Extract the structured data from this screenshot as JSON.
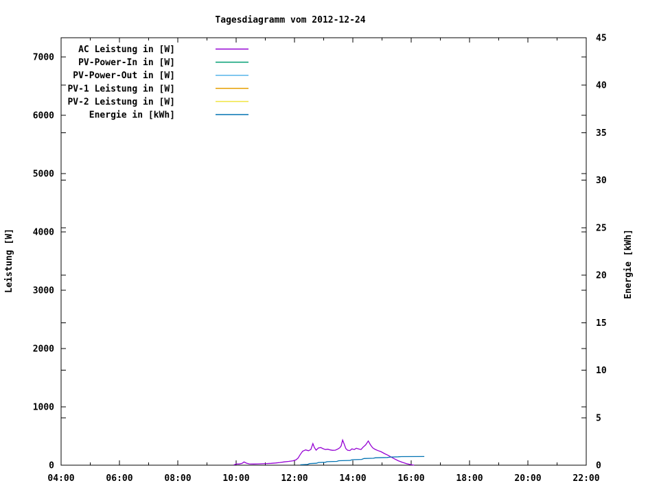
{
  "chart_data": {
    "type": "line",
    "title": "Tagesdiagramm vom 2012-12-24",
    "grid": false,
    "legend_position": "top-left-inside",
    "x_axis": {
      "range_hours": [
        4,
        22
      ],
      "major_ticks": [
        {
          "hour": 4,
          "label": "04:00"
        },
        {
          "hour": 6,
          "label": "06:00"
        },
        {
          "hour": 8,
          "label": "08:00"
        },
        {
          "hour": 10,
          "label": "10:00"
        },
        {
          "hour": 12,
          "label": "12:00"
        },
        {
          "hour": 14,
          "label": "14:00"
        },
        {
          "hour": 16,
          "label": "16:00"
        },
        {
          "hour": 18,
          "label": "18:00"
        },
        {
          "hour": 20,
          "label": "20:00"
        },
        {
          "hour": 22,
          "label": "22:00"
        }
      ],
      "minor_tick_hours": [
        5,
        7,
        9,
        11,
        13,
        15,
        17,
        19,
        21
      ]
    },
    "y_left": {
      "label": "Leistung [W]",
      "min": 0,
      "max": 7327,
      "tick_values": [
        0,
        1000,
        2000,
        3000,
        4000,
        5000,
        6000,
        7000
      ]
    },
    "y_right": {
      "label": "Energie [kWh]",
      "min": 0,
      "max": 45,
      "tick_values": [
        0,
        5,
        10,
        15,
        20,
        25,
        30,
        35,
        40,
        45
      ]
    },
    "series": [
      {
        "name": "AC Leistung in [W]",
        "color": "#9400d3",
        "axis": "left",
        "points": [
          [
            9.92,
            5
          ],
          [
            10.0,
            20
          ],
          [
            10.1,
            20
          ],
          [
            10.2,
            30
          ],
          [
            10.27,
            55
          ],
          [
            10.35,
            35
          ],
          [
            10.45,
            22
          ],
          [
            10.6,
            20
          ],
          [
            10.75,
            22
          ],
          [
            10.9,
            25
          ],
          [
            11.05,
            28
          ],
          [
            11.2,
            32
          ],
          [
            11.35,
            38
          ],
          [
            11.5,
            46
          ],
          [
            11.65,
            56
          ],
          [
            11.8,
            65
          ],
          [
            11.95,
            75
          ],
          [
            12.05,
            90
          ],
          [
            12.12,
            120
          ],
          [
            12.2,
            185
          ],
          [
            12.28,
            240
          ],
          [
            12.38,
            262
          ],
          [
            12.48,
            248
          ],
          [
            12.56,
            268
          ],
          [
            12.63,
            370
          ],
          [
            12.68,
            305
          ],
          [
            12.74,
            258
          ],
          [
            12.82,
            295
          ],
          [
            12.9,
            302
          ],
          [
            12.98,
            282
          ],
          [
            13.06,
            268
          ],
          [
            13.14,
            274
          ],
          [
            13.22,
            262
          ],
          [
            13.3,
            255
          ],
          [
            13.4,
            258
          ],
          [
            13.48,
            275
          ],
          [
            13.55,
            298
          ],
          [
            13.6,
            332
          ],
          [
            13.65,
            430
          ],
          [
            13.7,
            368
          ],
          [
            13.76,
            285
          ],
          [
            13.82,
            255
          ],
          [
            13.9,
            252
          ],
          [
            13.97,
            280
          ],
          [
            14.05,
            268
          ],
          [
            14.12,
            290
          ],
          [
            14.2,
            278
          ],
          [
            14.28,
            268
          ],
          [
            14.35,
            308
          ],
          [
            14.44,
            348
          ],
          [
            14.53,
            415
          ],
          [
            14.6,
            352
          ],
          [
            14.68,
            298
          ],
          [
            14.76,
            272
          ],
          [
            14.86,
            250
          ],
          [
            14.97,
            230
          ],
          [
            15.08,
            200
          ],
          [
            15.2,
            172
          ],
          [
            15.32,
            138
          ],
          [
            15.44,
            105
          ],
          [
            15.56,
            75
          ],
          [
            15.7,
            48
          ],
          [
            15.85,
            25
          ],
          [
            15.98,
            10
          ],
          [
            16.1,
            0
          ]
        ]
      },
      {
        "name": "PV-Power-In in [W]",
        "color": "#009e73",
        "axis": "left",
        "points": []
      },
      {
        "name": "PV-Power-Out in [W]",
        "color": "#56b4e9",
        "axis": "left",
        "points": []
      },
      {
        "name": "PV-1 Leistung in [W]",
        "color": "#e69f00",
        "axis": "left",
        "points": []
      },
      {
        "name": "PV-2 Leistung in [W]",
        "color": "#f0e442",
        "axis": "left",
        "points": []
      },
      {
        "name": "Energie in [kWh]",
        "color": "#0072b2",
        "axis": "right",
        "points": [
          [
            12.2,
            0.04
          ],
          [
            12.45,
            0.08
          ],
          [
            12.52,
            0.17
          ],
          [
            12.75,
            0.2
          ],
          [
            12.82,
            0.28
          ],
          [
            13.05,
            0.3
          ],
          [
            13.12,
            0.37
          ],
          [
            13.45,
            0.4
          ],
          [
            13.52,
            0.47
          ],
          [
            13.9,
            0.5
          ],
          [
            13.98,
            0.58
          ],
          [
            14.3,
            0.61
          ],
          [
            14.38,
            0.7
          ],
          [
            14.7,
            0.73
          ],
          [
            14.78,
            0.78
          ],
          [
            15.18,
            0.81
          ],
          [
            15.3,
            0.86
          ],
          [
            15.55,
            0.88
          ],
          [
            15.66,
            0.9
          ],
          [
            16.45,
            0.91
          ]
        ]
      }
    ]
  }
}
